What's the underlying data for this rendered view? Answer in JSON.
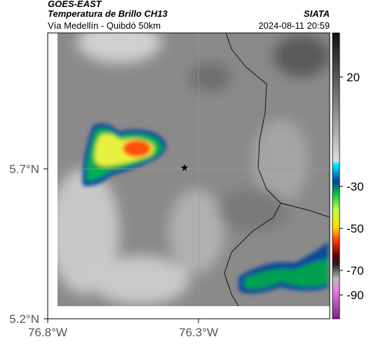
{
  "header": {
    "satellite": "GOES-EAST",
    "product": "Temperatura de Brillo CH13",
    "org": "SIATA",
    "region": "Vía Medellín - Quibdó 50km",
    "datetime": "2024-08-11 20:59"
  },
  "axes": {
    "lat_ticks": [
      "5.7°N",
      "5.2°N"
    ],
    "lon_ticks": [
      "76.8°W",
      "76.3°W"
    ]
  },
  "colorbar": {
    "ticks": [
      "20",
      "-30",
      "-50",
      "-70",
      "-90"
    ]
  }
}
